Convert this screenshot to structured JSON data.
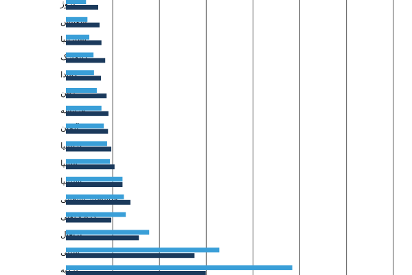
{
  "chart_data": {
    "type": "hbar",
    "categories": [
      "نروژ",
      "سوییس",
      "استرالیا",
      "دانمارک",
      "کانادا",
      "ژاپن",
      "فرانسه",
      "آلمان",
      "بریتانیا",
      "ایتالیا",
      "اسپانیا",
      "فلسطین اشغالی",
      "کره جنوبی",
      "پرتغال",
      "شیلی",
      "ترکیه"
    ],
    "series": [
      {
        "color": "#3a9fd8",
        "values": [
          4.3,
          4.6,
          5.0,
          5.9,
          6.0,
          6.6,
          7.6,
          8.1,
          8.8,
          9.4,
          12.1,
          12.4,
          12.8,
          17.8,
          32.8,
          48.4
        ]
      },
      {
        "color": "#1b3a5c",
        "values": [
          6.9,
          7.2,
          7.6,
          8.4,
          7.5,
          8.7,
          9.1,
          9.0,
          9.7,
          10.4,
          12.1,
          13.8,
          9.7,
          15.6,
          27.5,
          29.9
        ]
      }
    ],
    "xlim": [
      0,
      74
    ],
    "xticks": [
      10,
      20,
      30,
      40,
      50,
      60,
      70
    ],
    "grid": true
  }
}
